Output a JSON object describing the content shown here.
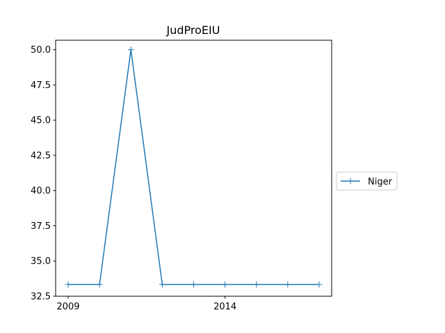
{
  "chart_data": {
    "type": "line",
    "title": "JudProEIU",
    "xlabel": "",
    "ylabel": "",
    "x": [
      2009,
      2010,
      2011,
      2012,
      2013,
      2014,
      2015,
      2016,
      2017
    ],
    "series": [
      {
        "name": "Niger",
        "values": [
          33.333,
          33.333,
          50.0,
          33.333,
          33.333,
          33.333,
          33.333,
          33.333,
          33.333
        ],
        "color": "#1f77b4",
        "marker": "+"
      }
    ],
    "xticks": [
      2009,
      2014
    ],
    "xtick_labels": [
      "2009",
      "2014"
    ],
    "yticks": [
      32.5,
      35.0,
      37.5,
      40.0,
      42.5,
      45.0,
      47.5,
      50.0
    ],
    "ytick_labels": [
      "32.5",
      "35.0",
      "37.5",
      "40.0",
      "42.5",
      "45.0",
      "47.5",
      "50.0"
    ],
    "xlim": [
      2008.6,
      2017.4
    ],
    "ylim": [
      32.5,
      50.67
    ],
    "grid": false,
    "legend_position": "outside-right"
  }
}
